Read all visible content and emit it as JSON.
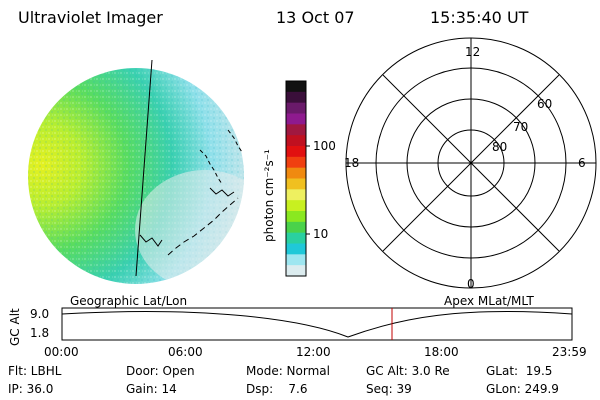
{
  "header": {
    "instrument": "Ultraviolet Imager",
    "date": "13 Oct 07",
    "time": "15:35:40 UT"
  },
  "colorbar": {
    "label": "photon cm⁻²s⁻¹",
    "ticks": [
      "100",
      "10"
    ],
    "colors": [
      "#111111",
      "#3a0f3a",
      "#6a1a6a",
      "#8e1a8e",
      "#a01840",
      "#c01020",
      "#e11010",
      "#f04010",
      "#f08a10",
      "#f0c020",
      "#eef060",
      "#c8f020",
      "#8ae820",
      "#4ad24a",
      "#2ad0a0",
      "#20c8d8",
      "#9ee6f0",
      "#dcecef"
    ]
  },
  "polar_plot": {
    "mlt_labels": {
      "top": "12",
      "left": "18",
      "right": "6",
      "bottom": "0"
    },
    "mlat_labels": [
      "60",
      "70",
      "80"
    ]
  },
  "timeline": {
    "left_label": "Geographic Lat/Lon",
    "right_label": "Apex MLat/MLT",
    "y_axis_label": "GC Alt",
    "y_ticks": [
      "9.0",
      "1.8"
    ],
    "x_ticks": [
      "00:00",
      "06:00",
      "12:00",
      "18:00",
      "23:59"
    ],
    "marker_color": "#c00000"
  },
  "status": {
    "flt": "Flt: LBHL",
    "ip": "IP: 36.0",
    "door": "Door: Open",
    "gain": "Gain: 14",
    "mode": "Mode: Normal",
    "dsp": "Dsp:    7.6",
    "gc_alt": "GC Alt: 3.0 Re",
    "seq": "Seq: 39",
    "glat": "GLat:  19.5",
    "glon": "GLon: 249.9"
  }
}
